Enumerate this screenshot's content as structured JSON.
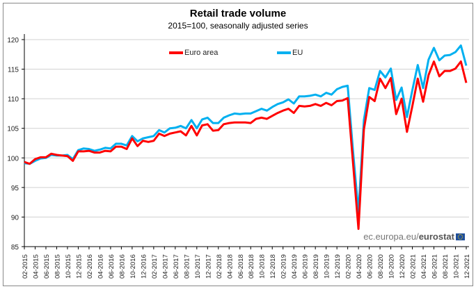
{
  "chart_data": {
    "type": "line",
    "title": "Retail trade volume",
    "subtitle": "2015=100, seasonally adjusted series",
    "xlabel": "",
    "ylabel": "",
    "ylim": [
      85,
      120
    ],
    "yticks": [
      "85",
      "90",
      "95",
      "100",
      "105",
      "110",
      "115",
      "120"
    ],
    "grid": true,
    "legend_placement": "top",
    "x_tick_labels": [
      "02-2015",
      "04-2015",
      "06-2015",
      "08-2015",
      "10-2015",
      "12-2015",
      "02-2016",
      "04-2016",
      "06-2016",
      "08-2016",
      "10-2016",
      "12-2016",
      "02-2017",
      "04-2017",
      "06-2017",
      "08-2017",
      "10-2017",
      "12-2017",
      "02-2018",
      "04-2018",
      "06-2018",
      "08-2018",
      "10-2018",
      "12-2018",
      "02-2019",
      "04-2019",
      "06-2019",
      "08-2019",
      "10-2019",
      "12-2019",
      "02-2020",
      "04-2020",
      "06-2020",
      "08-2020",
      "10-2020",
      "12-2020",
      "02-2021",
      "04-2021",
      "06-2021",
      "08-2021",
      "10-2021",
      "12-2021"
    ],
    "x_start": "02-2015",
    "x_end": "12-2021",
    "x_frequency": "monthly",
    "series": [
      {
        "name": "Euro area",
        "color": "#ff0000",
        "values": [
          99.3,
          99.0,
          99.8,
          100.1,
          100.1,
          100.7,
          100.5,
          100.4,
          100.3,
          99.5,
          101.1,
          101.1,
          101.2,
          100.9,
          100.9,
          101.2,
          101.1,
          101.9,
          101.9,
          101.5,
          103.3,
          102.0,
          102.9,
          102.7,
          102.9,
          104.1,
          103.7,
          104.1,
          104.3,
          104.5,
          103.8,
          105.4,
          103.8,
          105.5,
          105.7,
          104.6,
          104.7,
          105.7,
          105.9,
          106.0,
          106.0,
          106.0,
          105.9,
          106.6,
          106.8,
          106.6,
          107.1,
          107.6,
          108.0,
          108.3,
          107.6,
          108.8,
          108.7,
          108.8,
          109.1,
          108.8,
          109.3,
          108.9,
          109.6,
          109.7,
          110.1,
          99.0,
          88.0,
          104.8,
          110.3,
          109.6,
          113.4,
          111.8,
          113.5,
          107.4,
          110.0,
          104.4,
          108.8,
          113.4,
          109.5,
          114.0,
          116.3,
          113.8,
          114.7,
          114.7,
          115.1,
          116.3,
          112.7
        ]
      },
      {
        "name": "EU",
        "color": "#00b0f0",
        "values": [
          99.1,
          99.0,
          99.5,
          99.9,
          100.0,
          100.5,
          100.4,
          100.4,
          100.5,
          99.8,
          101.3,
          101.6,
          101.5,
          101.2,
          101.4,
          101.7,
          101.6,
          102.4,
          102.4,
          102.1,
          103.7,
          102.8,
          103.3,
          103.5,
          103.7,
          104.7,
          104.3,
          105.0,
          105.1,
          105.4,
          105.0,
          106.4,
          105.0,
          106.5,
          106.8,
          105.9,
          105.9,
          106.8,
          107.2,
          107.5,
          107.4,
          107.5,
          107.5,
          107.9,
          108.3,
          108.0,
          108.6,
          109.1,
          109.4,
          109.9,
          109.2,
          110.4,
          110.4,
          110.5,
          110.7,
          110.4,
          111.0,
          110.7,
          111.6,
          112.0,
          112.2,
          101.0,
          90.8,
          106.4,
          111.8,
          111.5,
          114.7,
          113.6,
          115.1,
          109.8,
          111.9,
          106.9,
          111.5,
          115.7,
          111.8,
          116.6,
          118.6,
          116.5,
          117.3,
          117.4,
          117.9,
          119.0,
          115.6
        ]
      }
    ]
  },
  "source": {
    "domain": "ec.europa.eu/",
    "brand": "eurostat"
  }
}
